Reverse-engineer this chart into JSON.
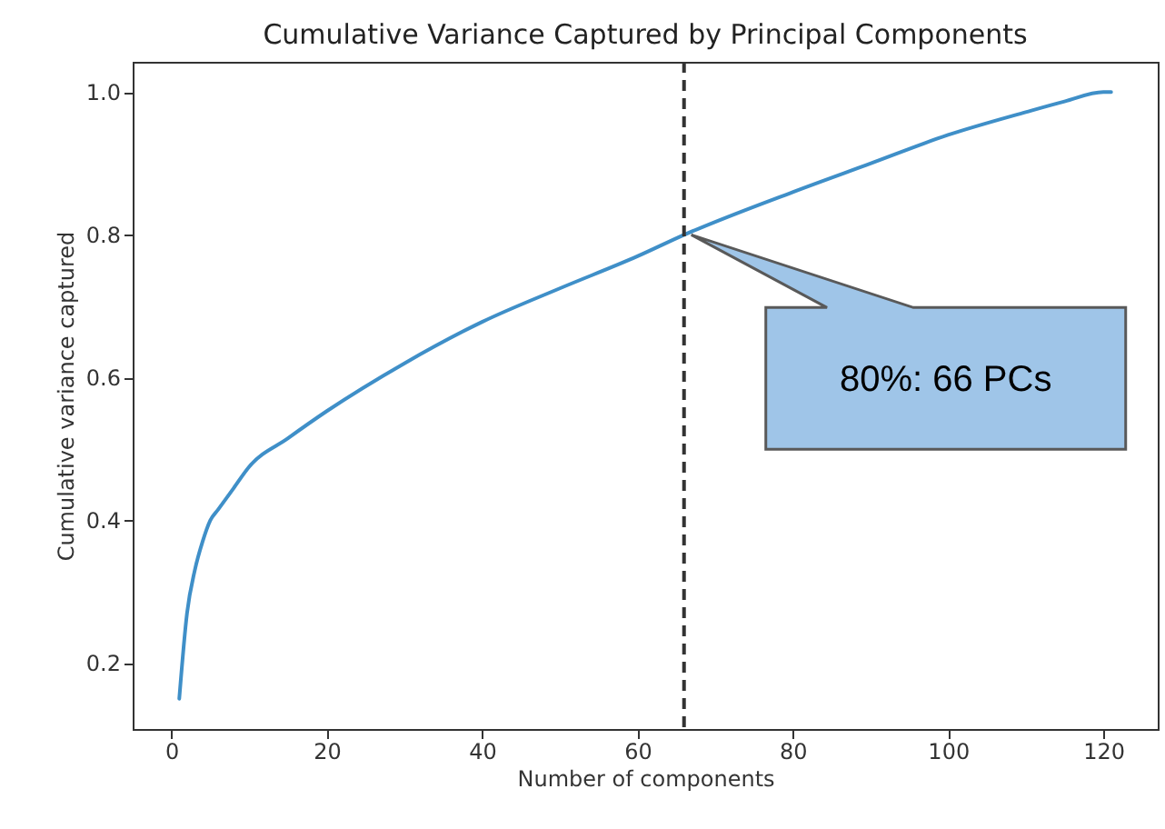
{
  "chart_data": {
    "type": "line",
    "title": "Cumulative Variance Captured by Principal Components",
    "xlabel": "Number of components",
    "ylabel": "Cumulative variance captured",
    "x": [
      1,
      2,
      3,
      4,
      5,
      6,
      8,
      10,
      15,
      20,
      30,
      40,
      50,
      60,
      66,
      80,
      90,
      100,
      110,
      115,
      120,
      121
    ],
    "series": [
      {
        "color": "#3f8fc8",
        "values": [
          0.15,
          0.27,
          0.33,
          0.37,
          0.4,
          0.415,
          0.445,
          0.475,
          0.515,
          0.553,
          0.62,
          0.678,
          0.725,
          0.77,
          0.8,
          0.86,
          0.9,
          0.94,
          0.972,
          0.987,
          1.0,
          1.0
        ]
      }
    ],
    "xlim": [
      -5,
      127
    ],
    "xticks": [
      0,
      20,
      40,
      60,
      80,
      100,
      120
    ],
    "ylim": [
      0.1075,
      1.0425
    ],
    "yticks": [
      0.2,
      0.4,
      0.6,
      0.8,
      {
        "value": 1,
        "label": "1.0"
      }
    ],
    "ref_lines": [
      {
        "axis": "x",
        "value": 66,
        "line_style": "dashed",
        "color": "#333333"
      }
    ],
    "annotations": [
      "80%: 66 PCs"
    ],
    "grid": false,
    "marker": "none",
    "line_style": "solid"
  }
}
